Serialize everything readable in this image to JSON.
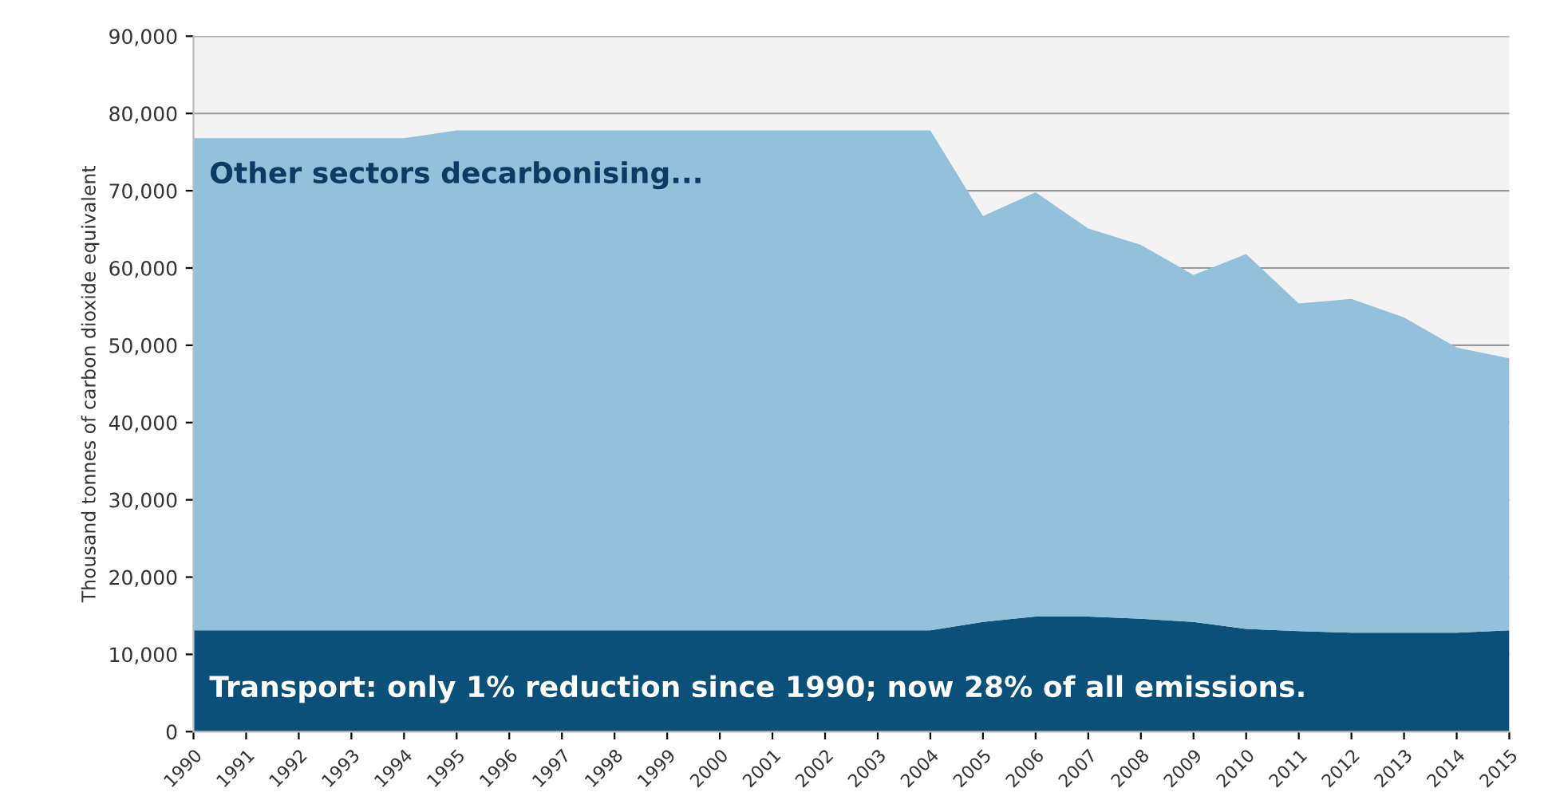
{
  "chart_data": {
    "type": "area",
    "stacked": true,
    "ylabel": "Thousand tonnes of carbon dioxide equivalent",
    "categories": [
      "1990",
      "1991",
      "1992",
      "1993",
      "1994",
      "1995",
      "1996",
      "1997",
      "1998",
      "1999",
      "2000",
      "2001",
      "2002",
      "2003",
      "2004",
      "2005",
      "2006",
      "2007",
      "2008",
      "2009",
      "2010",
      "2011",
      "2012",
      "2013",
      "2014",
      "2015"
    ],
    "series": [
      {
        "color": "#0b5078",
        "values": [
          13100,
          13100,
          13100,
          13100,
          13100,
          13100,
          13100,
          13100,
          13100,
          13100,
          13100,
          13100,
          13100,
          13100,
          13100,
          14200,
          14900,
          14900,
          14600,
          14200,
          13300,
          13000,
          12800,
          12800,
          12800,
          13100
        ]
      },
      {
        "color": "#93c0da",
        "values": [
          63700,
          63700,
          63700,
          63700,
          63700,
          64700,
          64700,
          64700,
          64700,
          64700,
          64700,
          64700,
          64700,
          64700,
          64700,
          52500,
          54900,
          50200,
          48400,
          44900,
          48500,
          42400,
          43200,
          40800,
          36900,
          35200
        ]
      }
    ],
    "ylim": [
      0,
      90000
    ],
    "yticks": [
      0,
      {
        "value": 10000,
        "label": "10,000"
      },
      {
        "value": 20000,
        "label": "20,000"
      },
      {
        "value": 30000,
        "label": "30,000"
      },
      {
        "value": 40000,
        "label": "40,000"
      },
      {
        "value": 50000,
        "label": "50,000"
      },
      {
        "value": 60000,
        "label": "60,000"
      },
      {
        "value": 70000,
        "label": "70,000"
      },
      {
        "value": 80000,
        "label": "80,000"
      },
      {
        "value": 90000,
        "label": "90,000"
      }
    ],
    "grid": "y",
    "annotations": [
      {
        "text": "Other sectors decarbonising...",
        "x": "1990",
        "y": 72000
      },
      {
        "text": "Transport: only 1% reduction since 1990; now 28% of all emissions.",
        "x": "1990",
        "y": 5500
      }
    ]
  }
}
